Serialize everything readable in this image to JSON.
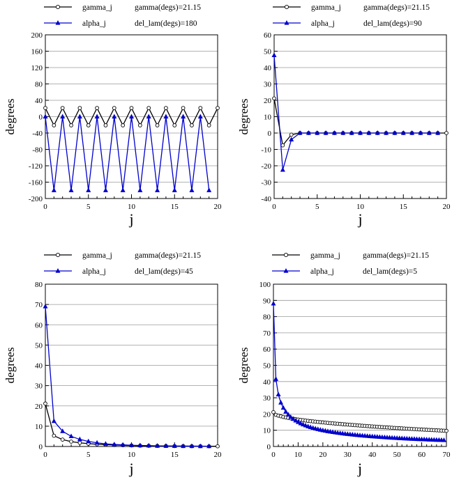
{
  "chart_data": [
    {
      "type": "line",
      "title": "",
      "xlabel": "j",
      "ylabel": "degrees",
      "xlim": [
        0,
        20
      ],
      "ylim": [
        -200,
        200
      ],
      "yticks": [
        -200,
        -160,
        -120,
        -80,
        -40,
        0,
        40,
        80,
        120,
        160,
        200
      ],
      "xticks": [
        0,
        5,
        10,
        15,
        20
      ],
      "grid": true,
      "legend": {
        "gamma_label": "gamma_j",
        "alpha_label": "alpha_j",
        "gamma_info": "gamma(degs)=21.15",
        "del_info": "del_lam(degs)=180"
      },
      "series": [
        {
          "name": "gamma_j",
          "color": "#000000",
          "marker": "circle",
          "x": [
            0,
            1,
            2,
            3,
            4,
            5,
            6,
            7,
            8,
            9,
            10,
            11,
            12,
            13,
            14,
            15,
            16,
            17,
            18,
            19,
            20
          ],
          "values": [
            21.15,
            -21.15,
            21.15,
            -21.15,
            21.15,
            -21.15,
            21.15,
            -21.15,
            21.15,
            -21.15,
            21.15,
            -21.15,
            21.15,
            -21.15,
            21.15,
            -21.15,
            21.15,
            -21.15,
            21.15,
            -21.15,
            21.15
          ]
        },
        {
          "name": "alpha_j",
          "color": "#0000cc",
          "marker": "triangle",
          "x": [
            0,
            1,
            2,
            3,
            4,
            5,
            6,
            7,
            8,
            9,
            10,
            11,
            12,
            13,
            14,
            15,
            16,
            17,
            18,
            19
          ],
          "values": [
            0,
            -180,
            0,
            -180,
            0,
            -180,
            0,
            -180,
            0,
            -180,
            0,
            -180,
            0,
            -180,
            0,
            -180,
            0,
            -180,
            0,
            -180
          ]
        }
      ]
    },
    {
      "type": "line",
      "title": "",
      "xlabel": "j",
      "ylabel": "degrees",
      "xlim": [
        0,
        20
      ],
      "ylim": [
        -40,
        60
      ],
      "yticks": [
        -40,
        -30,
        -20,
        -10,
        0,
        10,
        20,
        30,
        40,
        50,
        60
      ],
      "xticks": [
        0,
        5,
        10,
        15,
        20
      ],
      "grid": true,
      "legend": {
        "gamma_label": "gamma_j",
        "alpha_label": "alpha_j",
        "gamma_info": "gamma(degs)=21.15",
        "del_info": "del_lam(degs)=90"
      },
      "series": [
        {
          "name": "gamma_j",
          "color": "#000000",
          "marker": "circle",
          "x": [
            0,
            1,
            2,
            3,
            4,
            5,
            6,
            7,
            8,
            9,
            10,
            11,
            12,
            13,
            14,
            15,
            16,
            17,
            18,
            19,
            20
          ],
          "values": [
            21.15,
            -7.5,
            -1,
            0,
            0,
            0,
            0,
            0,
            0,
            0,
            0,
            0,
            0,
            0,
            0,
            0,
            0,
            0,
            0,
            0,
            0
          ]
        },
        {
          "name": "alpha_j",
          "color": "#0000cc",
          "marker": "triangle",
          "x": [
            0,
            1,
            2,
            3,
            4,
            5,
            6,
            7,
            8,
            9,
            10,
            11,
            12,
            13,
            14,
            15,
            16,
            17,
            18,
            19
          ],
          "values": [
            47.5,
            -22.5,
            -4,
            0,
            0,
            0,
            0,
            0,
            0,
            0,
            0,
            0,
            0,
            0,
            0,
            0,
            0,
            0,
            0,
            0
          ]
        }
      ]
    },
    {
      "type": "line",
      "title": "",
      "xlabel": "j",
      "ylabel": "degrees",
      "xlim": [
        0,
        20
      ],
      "ylim": [
        0,
        80
      ],
      "yticks": [
        0,
        10,
        20,
        30,
        40,
        50,
        60,
        70,
        80
      ],
      "xticks": [
        0,
        5,
        10,
        15,
        20
      ],
      "grid": true,
      "legend": {
        "gamma_label": "gamma_j",
        "alpha_label": "alpha_j",
        "gamma_info": "gamma(degs)=21.15",
        "del_info": "del_lam(degs)=45"
      },
      "series": [
        {
          "name": "gamma_j",
          "color": "#000000",
          "marker": "circle",
          "x": [
            0,
            1,
            2,
            3,
            4,
            5,
            6,
            7,
            8,
            9,
            10,
            11,
            12,
            13,
            14,
            15,
            16,
            17,
            18,
            19,
            20
          ],
          "values": [
            21.15,
            5.3,
            3.4,
            2.4,
            1.8,
            1.4,
            1.1,
            0.9,
            0.7,
            0.6,
            0.5,
            0.4,
            0.35,
            0.3,
            0.25,
            0.2,
            0.2,
            0.15,
            0.15,
            0.1,
            0.1
          ]
        },
        {
          "name": "alpha_j",
          "color": "#0000cc",
          "marker": "triangle",
          "x": [
            0,
            1,
            2,
            3,
            4,
            5,
            6,
            7,
            8,
            9,
            10,
            11,
            12,
            13,
            14,
            15,
            16,
            17,
            18,
            19
          ],
          "values": [
            69,
            12.5,
            7.5,
            5,
            3.5,
            2.5,
            1.8,
            1.3,
            1,
            0.8,
            0.6,
            0.5,
            0.4,
            0.3,
            0.25,
            0.2,
            0.15,
            0.15,
            0.1,
            0.1
          ]
        }
      ]
    },
    {
      "type": "line",
      "title": "",
      "xlabel": "j",
      "ylabel": "degrees",
      "xlim": [
        0,
        70
      ],
      "ylim": [
        0,
        100
      ],
      "yticks": [
        0,
        10,
        20,
        30,
        40,
        50,
        60,
        70,
        80,
        90,
        100
      ],
      "xticks": [
        0,
        10,
        20,
        30,
        40,
        50,
        60,
        70
      ],
      "grid": true,
      "legend": {
        "gamma_label": "gamma_j",
        "alpha_label": "alpha_j",
        "gamma_info": "gamma(degs)=21.15",
        "del_info": "del_lam(degs)=5"
      },
      "series": [
        {
          "name": "gamma_j",
          "color": "#000000",
          "marker": "circle",
          "x": [
            0,
            1,
            2,
            3,
            4,
            5,
            6,
            7,
            8,
            9,
            10,
            11,
            12,
            13,
            14,
            15,
            16,
            17,
            18,
            19,
            20,
            21,
            22,
            23,
            24,
            25,
            26,
            27,
            28,
            29,
            30,
            31,
            32,
            33,
            34,
            35,
            36,
            37,
            38,
            39,
            40,
            41,
            42,
            43,
            44,
            45,
            46,
            47,
            48,
            49,
            50,
            51,
            52,
            53,
            54,
            55,
            56,
            57,
            58,
            59,
            60,
            61,
            62,
            63,
            64,
            65,
            66,
            67,
            68,
            69,
            70
          ],
          "values": [
            21.15,
            19.5,
            19.0,
            18.6,
            18.2,
            17.9,
            17.6,
            17.35,
            17.1,
            16.85,
            16.6,
            16.4,
            16.2,
            16.0,
            15.8,
            15.6,
            15.45,
            15.3,
            15.15,
            15.0,
            14.85,
            14.7,
            14.55,
            14.4,
            14.27,
            14.14,
            14.01,
            13.88,
            13.75,
            13.62,
            13.5,
            13.38,
            13.26,
            13.14,
            13.02,
            12.9,
            12.79,
            12.68,
            12.57,
            12.46,
            12.35,
            12.24,
            12.14,
            12.04,
            11.94,
            11.84,
            11.74,
            11.64,
            11.54,
            11.44,
            11.34,
            11.25,
            11.16,
            11.07,
            10.98,
            10.89,
            10.8,
            10.71,
            10.62,
            10.53,
            10.45,
            10.37,
            10.29,
            10.21,
            10.13,
            10.05,
            9.97,
            9.89,
            9.81,
            9.73,
            9.65
          ]
        },
        {
          "name": "alpha_j",
          "color": "#0000cc",
          "marker": "triangle",
          "x": [
            0,
            1,
            2,
            3,
            4,
            5,
            6,
            7,
            8,
            9,
            10,
            11,
            12,
            13,
            14,
            15,
            16,
            17,
            18,
            19,
            20,
            21,
            22,
            23,
            24,
            25,
            26,
            27,
            28,
            29,
            30,
            31,
            32,
            33,
            34,
            35,
            36,
            37,
            38,
            39,
            40,
            41,
            42,
            43,
            44,
            45,
            46,
            47,
            48,
            49,
            50,
            51,
            52,
            53,
            54,
            55,
            56,
            57,
            58,
            59,
            60,
            61,
            62,
            63,
            64,
            65,
            66,
            67,
            68,
            69
          ],
          "values": [
            88,
            41.5,
            32,
            27,
            23.8,
            21.4,
            19.6,
            18.1,
            16.9,
            15.9,
            15.0,
            14.2,
            13.5,
            12.9,
            12.35,
            11.85,
            11.4,
            11.0,
            10.6,
            10.25,
            9.93,
            9.63,
            9.35,
            9.09,
            8.84,
            8.61,
            8.39,
            8.18,
            7.98,
            7.79,
            7.61,
            7.44,
            7.27,
            7.11,
            6.96,
            6.81,
            6.67,
            6.54,
            6.41,
            6.28,
            6.16,
            6.04,
            5.93,
            5.82,
            5.71,
            5.61,
            5.51,
            5.41,
            5.32,
            5.23,
            5.14,
            5.05,
            4.97,
            4.89,
            4.81,
            4.73,
            4.66,
            4.59,
            4.52,
            4.45,
            4.38,
            4.32,
            4.26,
            4.2,
            4.14,
            4.08,
            4.02,
            3.97,
            3.92,
            3.87
          ]
        }
      ]
    }
  ]
}
